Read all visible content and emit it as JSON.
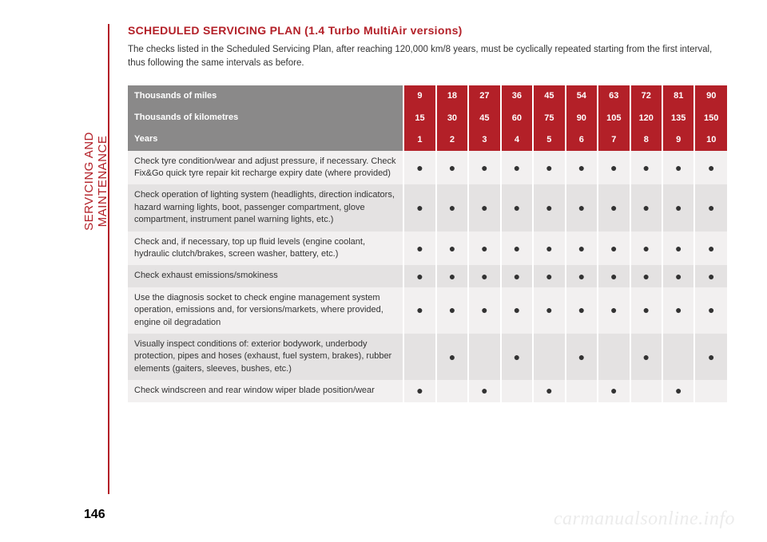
{
  "sidebar_label": "SERVICING AND MAINTENANCE",
  "page_number": "146",
  "watermark": "carmanualsonline.info",
  "title": "SCHEDULED SERVICING PLAN (1.4 Turbo MultiAir versions)",
  "intro": "The checks listed in the Scheduled Servicing Plan, after reaching 120,000 km/8 years, must be cyclically repeated starting from the first interval, thus following the same intervals as before.",
  "colors": {
    "brand": "#b32028",
    "header_label_bg": "#8a8989",
    "row_odd": "#f2f0f0",
    "row_even": "#e4e2e2",
    "text": "#333333"
  },
  "table": {
    "headers": [
      {
        "label": "Thousands of miles",
        "values": [
          "9",
          "18",
          "27",
          "36",
          "45",
          "54",
          "63",
          "72",
          "81",
          "90"
        ]
      },
      {
        "label": "Thousands of kilometres",
        "values": [
          "15",
          "30",
          "45",
          "60",
          "75",
          "90",
          "105",
          "120",
          "135",
          "150"
        ]
      },
      {
        "label": "Years",
        "values": [
          "1",
          "2",
          "3",
          "4",
          "5",
          "6",
          "7",
          "8",
          "9",
          "10"
        ]
      }
    ],
    "rows": [
      {
        "label": "Check tyre condition/wear and adjust pressure, if necessary. Check Fix&Go quick tyre repair kit recharge expiry date (where provided)",
        "marks": [
          1,
          1,
          1,
          1,
          1,
          1,
          1,
          1,
          1,
          1
        ]
      },
      {
        "label": "Check operation of lighting system (headlights, direction indicators, hazard warning lights, boot, passenger compartment, glove compartment, instrument panel warning lights, etc.)",
        "marks": [
          1,
          1,
          1,
          1,
          1,
          1,
          1,
          1,
          1,
          1
        ]
      },
      {
        "label": "Check and, if necessary, top up fluid levels (engine coolant, hydraulic clutch/brakes, screen washer, battery, etc.)",
        "marks": [
          1,
          1,
          1,
          1,
          1,
          1,
          1,
          1,
          1,
          1
        ]
      },
      {
        "label": "Check exhaust emissions/smokiness",
        "marks": [
          1,
          1,
          1,
          1,
          1,
          1,
          1,
          1,
          1,
          1
        ]
      },
      {
        "label": "Use the diagnosis socket to check engine management system operation, emissions and, for versions/markets, where provided, engine oil degradation",
        "marks": [
          1,
          1,
          1,
          1,
          1,
          1,
          1,
          1,
          1,
          1
        ]
      },
      {
        "label": "Visually inspect conditions of: exterior bodywork, underbody protection, pipes and hoses (exhaust, fuel system, brakes), rubber elements (gaiters, sleeves, bushes, etc.)",
        "marks": [
          0,
          1,
          0,
          1,
          0,
          1,
          0,
          1,
          0,
          1
        ]
      },
      {
        "label": "Check windscreen and rear window wiper blade position/wear",
        "marks": [
          1,
          0,
          1,
          0,
          1,
          0,
          1,
          0,
          1,
          0
        ]
      }
    ]
  }
}
